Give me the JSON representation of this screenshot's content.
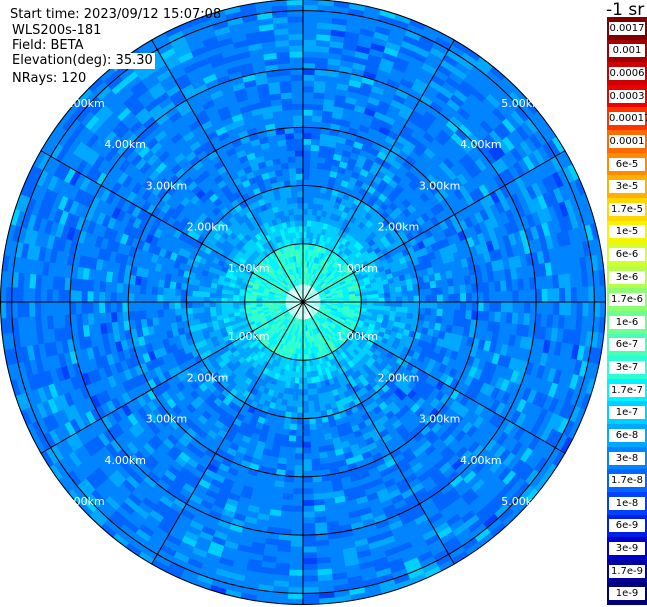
{
  "header": {
    "start_time": "Start time: 2023/09/12 15:07:08",
    "instrument": "WLS200s-181",
    "field": "Field: BETA",
    "elevation": "Elevation(deg): 35.30",
    "nrays": "NRays: 120"
  },
  "colorbar": {
    "unit": "-1 sr",
    "labels": [
      "0.0017",
      "0.001",
      "0.0006",
      "0.0003",
      "0.00017",
      "0.0001",
      "6e-5",
      "3e-5",
      "1.7e-5",
      "1e-5",
      "6e-6",
      "3e-6",
      "1.7e-6",
      "1e-6",
      "6e-7",
      "3e-7",
      "1.7e-7",
      "1e-7",
      "6e-8",
      "3e-8",
      "1.7e-8",
      "1e-8",
      "6e-9",
      "3e-9",
      "1.7e-9",
      "1e-9"
    ],
    "colors": [
      "#7f0000",
      "#a50000",
      "#cc0000",
      "#ee0000",
      "#ff3300",
      "#ff6a00",
      "#ff8c00",
      "#ffb000",
      "#ffd600",
      "#f5f500",
      "#d4ff2b",
      "#b5ff4a",
      "#8cff73",
      "#6bff94",
      "#4affb5",
      "#2bffd4",
      "#00f2ff",
      "#00d0ff",
      "#00a8ff",
      "#0084ff",
      "#0066ff",
      "#0040ff",
      "#0020e6",
      "#0000c8",
      "#0000a0",
      "#00007a"
    ]
  },
  "chart_data": {
    "type": "heatmap",
    "title": "",
    "projection": "polar-ppi",
    "range_unit": "km",
    "range_rings_km": [
      1,
      2,
      3,
      4,
      5
    ],
    "max_range_km": 5.2,
    "ring_labels": [
      "1.00km",
      "2.00km",
      "3.00km",
      "4.00km",
      "5.00km"
    ],
    "radial_line_step_deg": 30,
    "n_rays": 120,
    "colorscale": "log jet",
    "value_range": [
      1e-09,
      0.0017
    ],
    "typical_values": {
      "within_1km": "1.7e-7 to 3e-7",
      "1km_to_2km": "3e-8 to 6e-8",
      "beyond_2km": "1.7e-8 to 3e-8"
    }
  }
}
